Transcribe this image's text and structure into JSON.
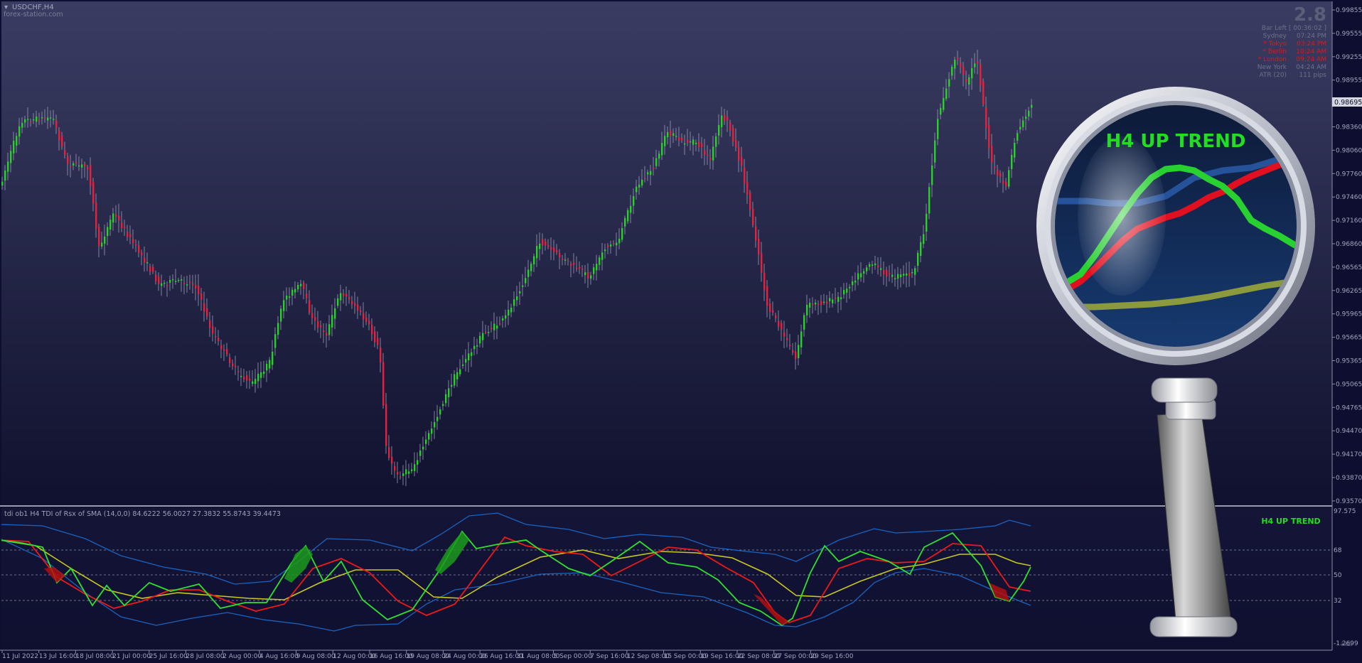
{
  "window": {
    "symbol_title": "USDCHF,H4",
    "watermark": "forex-station.com",
    "spread": "2.8"
  },
  "info_panel": [
    {
      "label": "Bar Left",
      "value": "[ 00:36:02 ]",
      "color": "#6e7088"
    },
    {
      "label": "Sydney",
      "value": "07:24 PM",
      "color": "#6e7088"
    },
    {
      "label": "* Tokyo",
      "value": "03:24 PM",
      "color": "#e01818"
    },
    {
      "label": "* Berlin",
      "value": "10:24 AM",
      "color": "#e01818"
    },
    {
      "label": "* London",
      "value": "09:24 AM",
      "color": "#e01818"
    },
    {
      "label": "New York",
      "value": "04:24 AM",
      "color": "#6e7088"
    },
    {
      "label": "ATR (20)",
      "value": "111 pips",
      "color": "#6e7088"
    }
  ],
  "price_axis": {
    "labels": [
      "0.99855",
      "0.99555",
      "0.99255",
      "0.98955",
      "0.98660",
      "0.98360",
      "0.98060",
      "0.97760",
      "0.97460",
      "0.97160",
      "0.96860",
      "0.96565",
      "0.96265",
      "0.95965",
      "0.95665",
      "0.95365",
      "0.95065",
      "0.94765",
      "0.94470",
      "0.94170",
      "0.93870",
      "0.93570"
    ],
    "current_price": "0.98695"
  },
  "indicator": {
    "title": "tdi ob1 H4 TDI of Rsx of SMA (14,0,0) 84.6222 56.0027 27.3832 55.8743 39.4473",
    "levels": [
      "97.575",
      "68",
      "50",
      "32",
      "-1.2699"
    ],
    "trend_label": "H4 UP TREND",
    "scale_suffix": "indi"
  },
  "time_axis": {
    "labels": [
      "11 Jul 2022",
      "13 Jul 16:00",
      "18 Jul 08:00",
      "21 Jul 00:00",
      "25 Jul 16:00",
      "28 Jul 08:00",
      "2 Aug 00:00",
      "4 Aug 16:00",
      "9 Aug 08:00",
      "12 Aug 00:00",
      "16 Aug 16:00",
      "19 Aug 08:00",
      "24 Aug 00:00",
      "26 Aug 16:00",
      "31 Aug 08:00",
      "5 Sep 00:00",
      "7 Sep 16:00",
      "12 Sep 08:00",
      "15 Sep 00:00",
      "19 Sep 16:00",
      "22 Sep 08:00",
      "27 Sep 00:00",
      "29 Sep 16:00"
    ]
  },
  "magnifier": {
    "label": "H4 UP TREND"
  },
  "colors": {
    "bull": "#28d028",
    "bear": "#e8203c",
    "tdi_green": "#30e030",
    "tdi_red": "#f01818",
    "tdi_yellow": "#c8c820",
    "tdi_blue": "#1a64c0",
    "trend_text": "#22dd22"
  }
}
